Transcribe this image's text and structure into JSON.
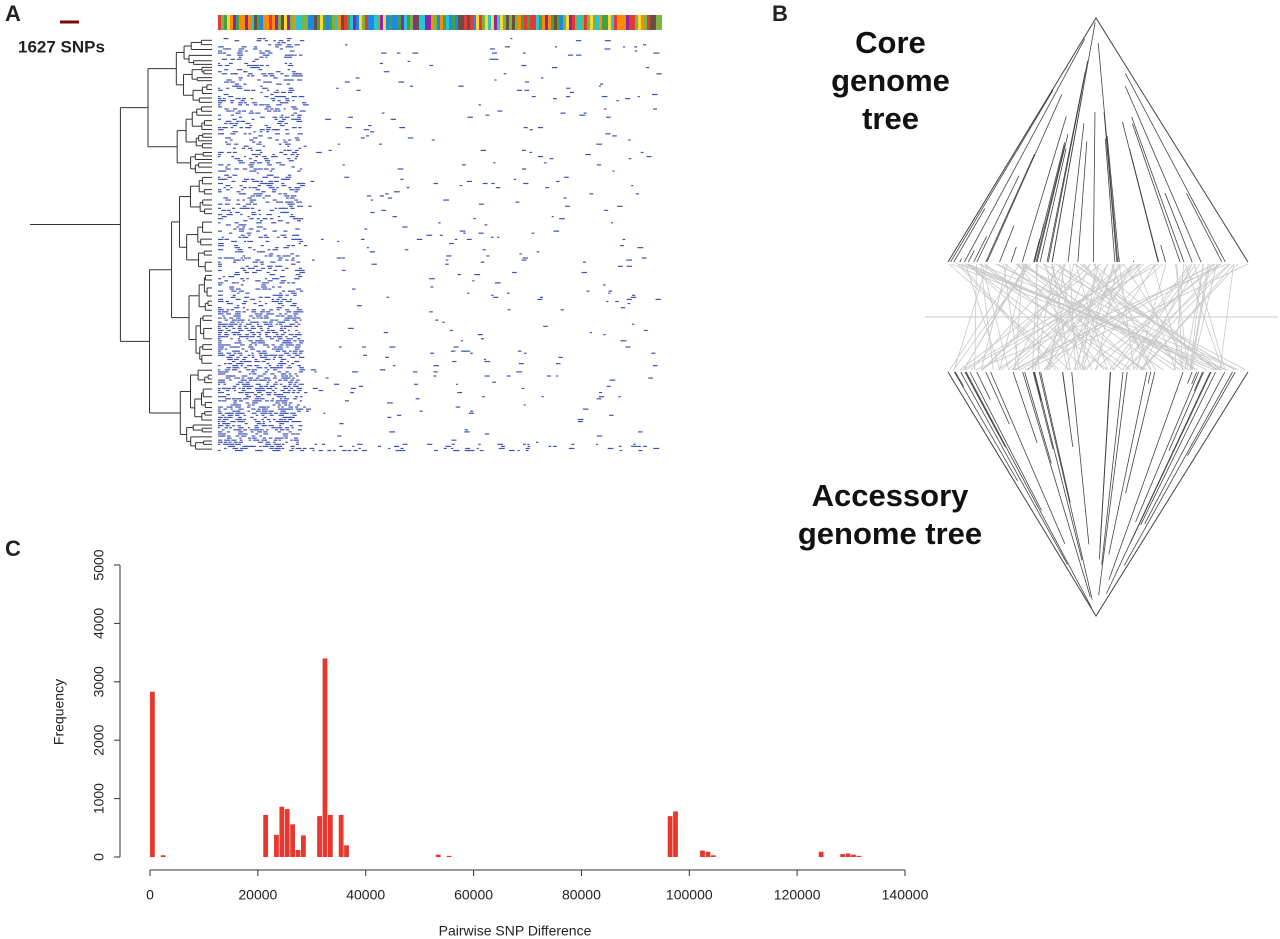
{
  "panel_labels": [
    "A",
    "B",
    "C"
  ],
  "snp_panel": {
    "scale_label": "1627 SNPs"
  },
  "tree_panel": {
    "top_label": "Core genome tree",
    "bottom_label": "Accessory genome tree"
  },
  "chart_data": {
    "type": "histogram",
    "xlabel": "Pairwise SNP Difference",
    "ylabel": "Frequency",
    "color": "#e8372c",
    "xlim": [
      0,
      140000
    ],
    "ylim": [
      0,
      5000
    ],
    "xticks": [
      0,
      20000,
      40000,
      60000,
      80000,
      100000,
      120000,
      140000
    ],
    "yticks": [
      0,
      1000,
      2000,
      3000,
      4000,
      5000
    ],
    "bins": [
      0,
      1000,
      2000,
      3000,
      4000,
      5000,
      6000,
      7000,
      8000,
      9000,
      10000,
      11000,
      12000,
      13000,
      14000,
      15000,
      16000,
      17000,
      18000,
      19000,
      20000,
      21000,
      22000,
      23000,
      24000,
      25000,
      26000,
      27000,
      28000,
      29000,
      30000,
      31000,
      32000,
      33000,
      34000,
      35000,
      36000,
      37000,
      38000,
      39000,
      40000,
      41000,
      42000,
      43000,
      44000,
      45000,
      46000,
      47000,
      48000,
      49000,
      50000,
      51000,
      52000,
      53000,
      54000,
      55000,
      56000,
      57000,
      58000,
      59000,
      60000,
      61000,
      62000,
      63000,
      64000,
      65000,
      66000,
      67000,
      68000,
      69000,
      70000,
      71000,
      72000,
      73000,
      74000,
      75000,
      76000,
      77000,
      78000,
      79000,
      80000,
      81000,
      82000,
      83000,
      84000,
      85000,
      86000,
      87000,
      88000,
      89000,
      90000,
      91000,
      92000,
      93000,
      94000,
      95000,
      96000,
      97000,
      98000,
      99000,
      100000,
      101000,
      102000,
      103000,
      104000,
      105000,
      106000,
      107000,
      108000,
      109000,
      110000,
      111000,
      112000,
      113000,
      114000,
      115000,
      116000,
      117000,
      118000,
      119000,
      120000,
      121000,
      122000,
      123000,
      124000,
      125000,
      126000,
      127000,
      128000,
      129000,
      130000,
      131000,
      132000,
      133000,
      134000,
      135000,
      136000
    ],
    "counts": [
      2830,
      0,
      30,
      0,
      0,
      0,
      0,
      0,
      0,
      0,
      0,
      0,
      0,
      0,
      0,
      0,
      0,
      0,
      0,
      0,
      0,
      720,
      0,
      380,
      860,
      820,
      560,
      120,
      370,
      0,
      0,
      700,
      3400,
      720,
      0,
      720,
      200,
      0,
      0,
      0,
      0,
      0,
      0,
      0,
      0,
      0,
      0,
      0,
      0,
      0,
      0,
      0,
      0,
      40,
      0,
      20,
      0,
      0,
      0,
      0,
      0,
      0,
      0,
      0,
      0,
      0,
      0,
      0,
      0,
      0,
      0,
      0,
      0,
      0,
      0,
      0,
      0,
      0,
      0,
      0,
      0,
      0,
      0,
      0,
      0,
      0,
      0,
      0,
      0,
      0,
      0,
      0,
      0,
      0,
      0,
      0,
      700,
      780,
      0,
      0,
      0,
      0,
      110,
      90,
      30,
      0,
      0,
      0,
      0,
      0,
      0,
      0,
      0,
      0,
      0,
      0,
      0,
      0,
      0,
      0,
      0,
      0,
      0,
      0,
      90,
      0,
      0,
      0,
      50,
      60,
      40,
      20,
      0,
      0,
      0,
      0
    ]
  }
}
